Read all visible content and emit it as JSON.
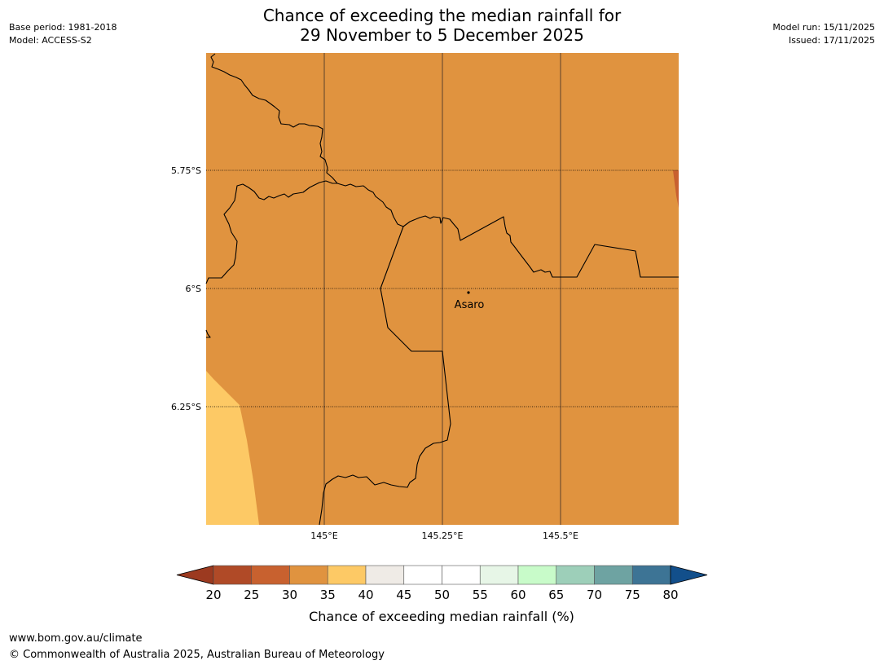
{
  "header": {
    "base_period": "Base period: 1981-2018",
    "model": "Model: ACCESS-S2",
    "model_run": "Model run: 15/11/2025",
    "issued": "Issued: 17/11/2025",
    "title_line1": "Chance of exceeding the median rainfall for",
    "title_line2": "29 November to 5 December 2025"
  },
  "map": {
    "place_label": "Asaro",
    "lat_labels": [
      "5.75°S",
      "6°S",
      "6.25°S"
    ],
    "lon_labels": [
      "145°E",
      "145.25°E",
      "145.5°E"
    ],
    "region_colors": {
      "main": "#e0933f",
      "light": "#fdc965",
      "dark_edge": "#c8602f"
    }
  },
  "colorbar": {
    "ticks": [
      "20",
      "25",
      "30",
      "35",
      "40",
      "45",
      "50",
      "55",
      "60",
      "65",
      "70",
      "75",
      "80"
    ],
    "label": "Chance of exceeding median rainfall (%)",
    "colors": [
      "#9c3a20",
      "#b04a27",
      "#c8612f",
      "#e0933f",
      "#fdc965",
      "#efebe6",
      "#ffffff",
      "#ffffff",
      "#e7f6e7",
      "#c8fbc9",
      "#9dcfb9",
      "#6ea3a2",
      "#3d7495",
      "#124f8b"
    ]
  },
  "footer": {
    "url": "www.bom.gov.au/climate",
    "copyright": "© Commonwealth of Australia 2025, Australian Bureau of Meteorology"
  }
}
